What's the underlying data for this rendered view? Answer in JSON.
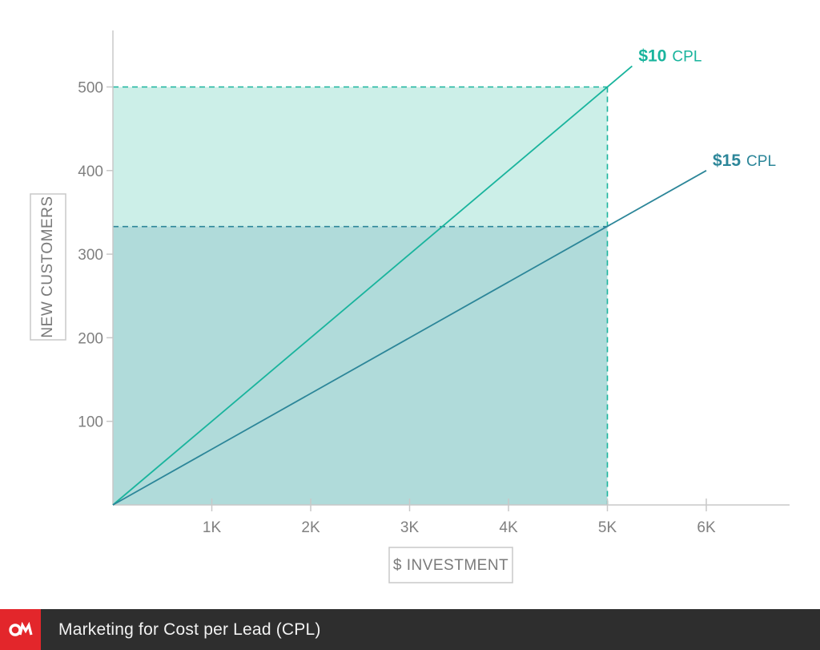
{
  "chart_data": {
    "type": "line",
    "xlabel": "$ INVESTMENT",
    "ylabel": "NEW CUSTOMERS",
    "xlim": [
      0,
      6800
    ],
    "ylim": [
      0,
      560
    ],
    "x_ticks": [
      1000,
      2000,
      3000,
      4000,
      5000,
      6000
    ],
    "x_tick_labels": [
      "1K",
      "2K",
      "3K",
      "4K",
      "5K",
      "6K"
    ],
    "y_ticks": [
      100,
      200,
      300,
      400,
      500
    ],
    "y_tick_labels": [
      "100",
      "200",
      "300",
      "400",
      "500"
    ],
    "grid": false,
    "series": [
      {
        "price": "$10",
        "unit": "CPL",
        "color": "#19b49d",
        "x": [
          0,
          5250
        ],
        "y": [
          0,
          525
        ]
      },
      {
        "price": "$15",
        "unit": "CPL",
        "color": "#2c8699",
        "x": [
          0,
          6000
        ],
        "y": [
          0,
          400
        ]
      }
    ],
    "reference": {
      "x": 5000,
      "y_values": [
        500,
        333
      ],
      "fill_colors": [
        "#ccefe8",
        "#b0dbda"
      ]
    }
  },
  "footer": {
    "title": "Marketing for Cost per Lead (CPL)",
    "logo_color": "#e3262b"
  }
}
